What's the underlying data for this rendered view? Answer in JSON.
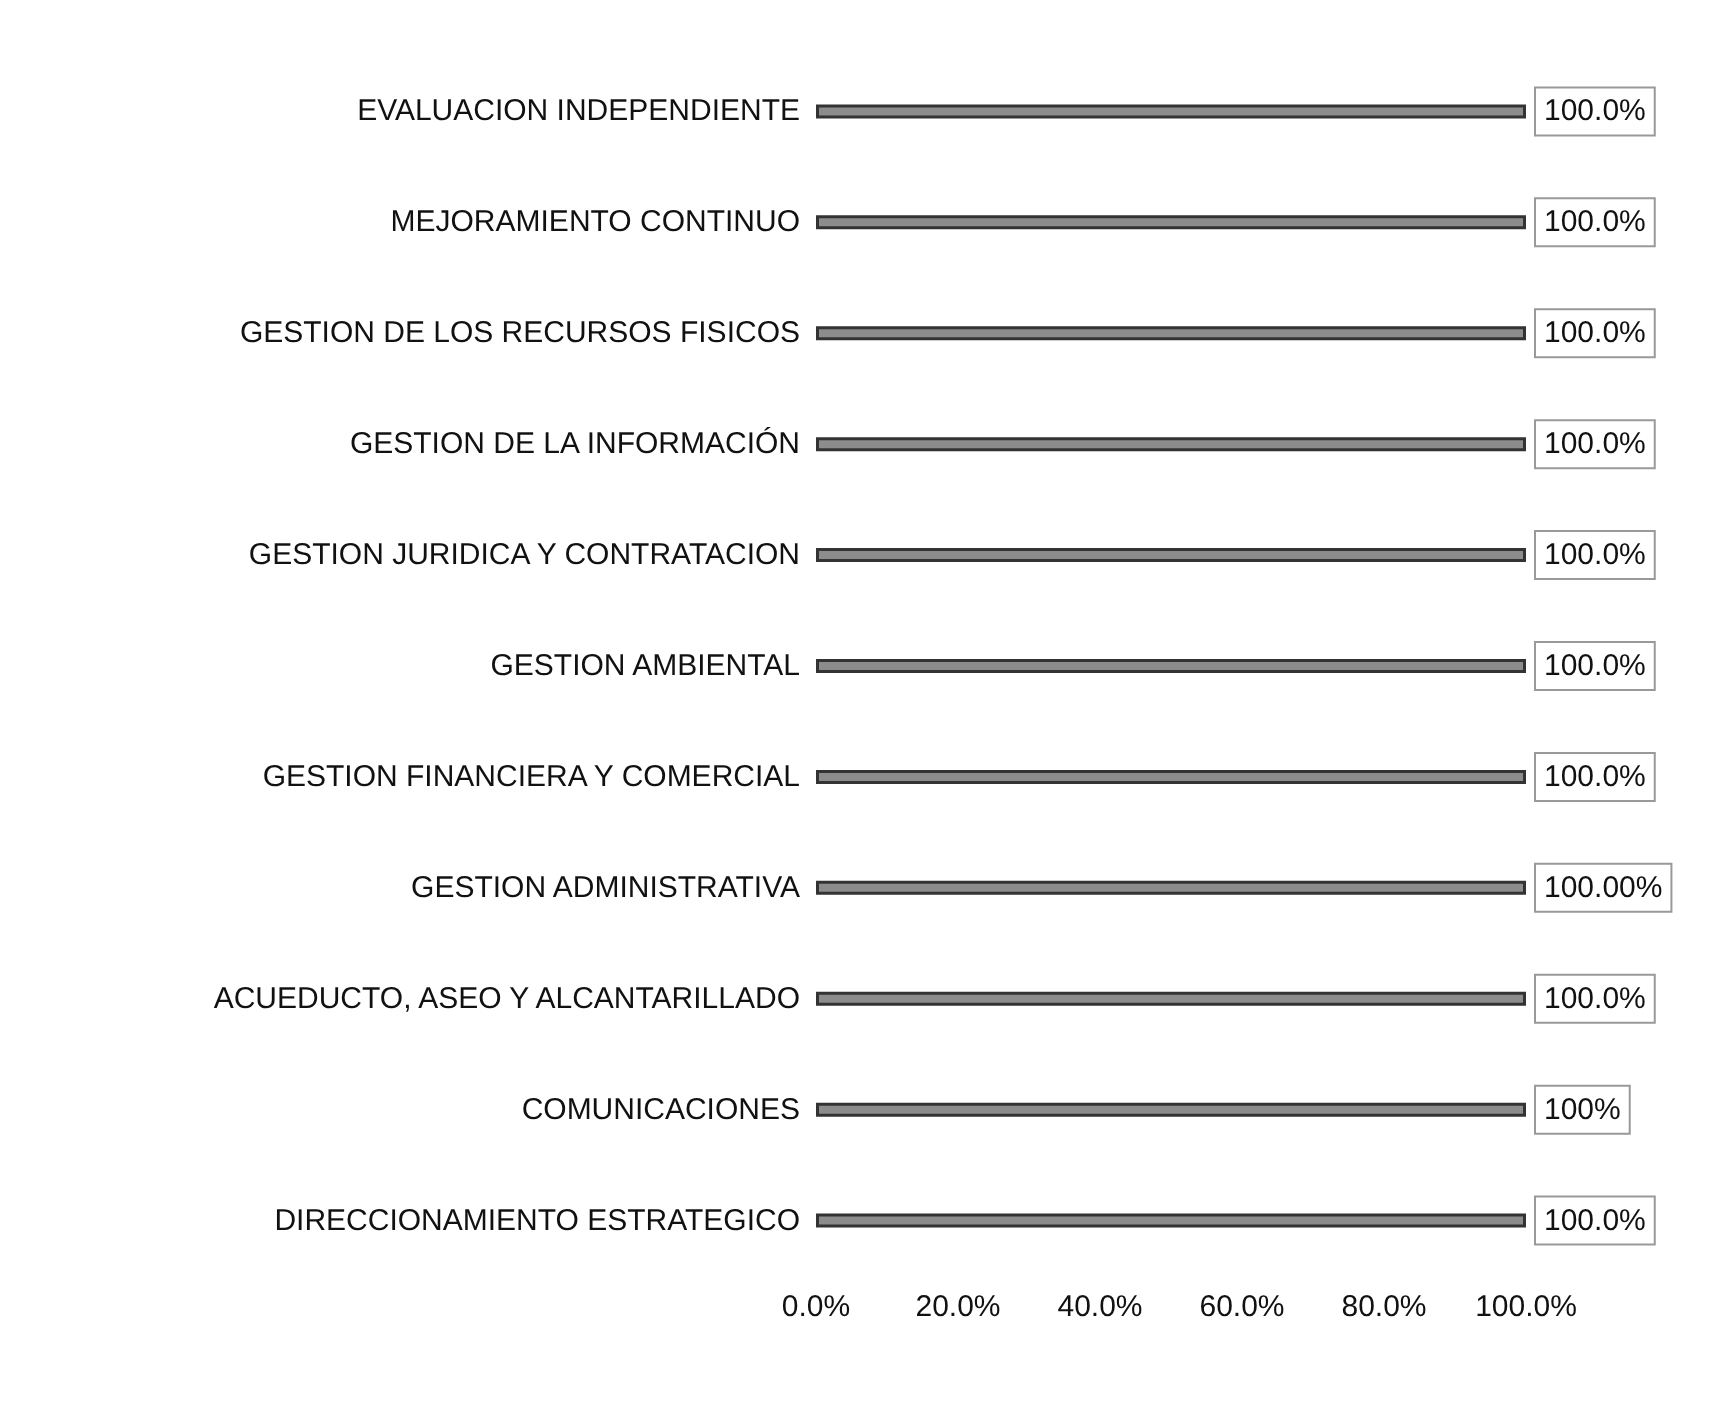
{
  "chart_data": {
    "type": "bar",
    "orientation": "horizontal",
    "categories": [
      "EVALUACION INDEPENDIENTE",
      "MEJORAMIENTO CONTINUO",
      "GESTION DE LOS RECURSOS FISICOS",
      "GESTION DE LA INFORMACIÓN",
      "GESTION JURIDICA Y CONTRATACION",
      "GESTION AMBIENTAL",
      "GESTION FINANCIERA Y COMERCIAL",
      "GESTION ADMINISTRATIVA",
      "ACUEDUCTO, ASEO Y ALCANTARILLADO",
      "COMUNICACIONES",
      "DIRECCIONAMIENTO ESTRATEGICO"
    ],
    "values": [
      100,
      100,
      100,
      100,
      100,
      100,
      100,
      100,
      100,
      100,
      100
    ],
    "value_labels": [
      "100.0%",
      "100.0%",
      "100.0%",
      "100.0%",
      "100.0%",
      "100.0%",
      "100.0%",
      "100.00%",
      "100.0%",
      "100%",
      "100.0%"
    ],
    "color": "#8c8c8c",
    "xlim": [
      0,
      100
    ],
    "xticks": [
      {
        "value": 0,
        "label": "0.0%"
      },
      {
        "value": 20,
        "label": "20.0%"
      },
      {
        "value": 40,
        "label": "40.0%"
      },
      {
        "value": 60,
        "label": "60.0%"
      },
      {
        "value": 80,
        "label": "80.0%"
      },
      {
        "value": 100,
        "label": "100.0%"
      }
    ],
    "grid": false
  }
}
